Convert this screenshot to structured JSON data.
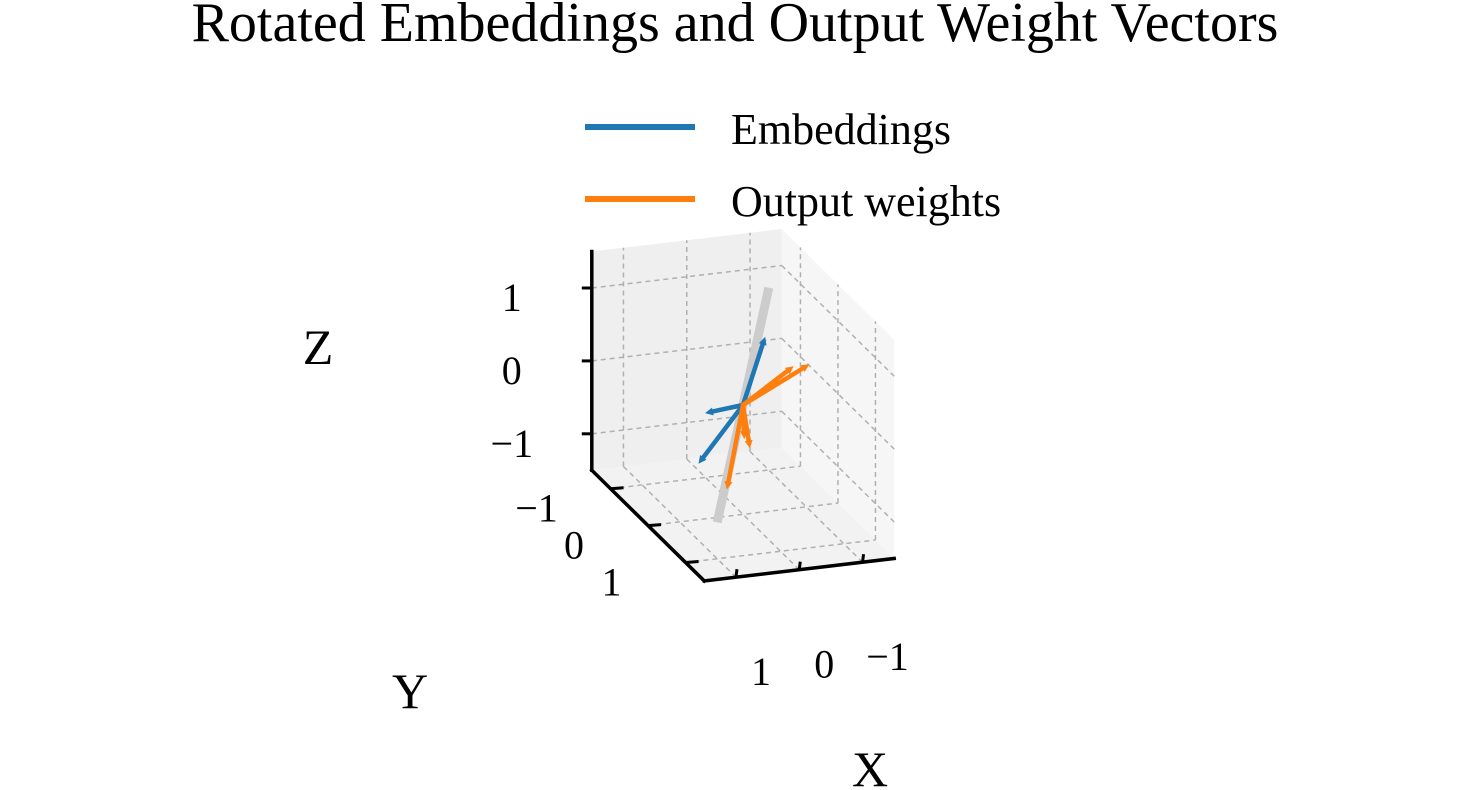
{
  "chart_data": {
    "type": "3d-vector",
    "title": "Rotated Embeddings and Output Weight Vectors",
    "xlabel": "X",
    "ylabel": "Y",
    "zlabel": "Z",
    "xticks": [
      "−1",
      "0",
      "1"
    ],
    "yticks": [
      "−1",
      "0",
      "1"
    ],
    "zticks": [
      "−1",
      "0",
      "1"
    ],
    "xlim": [
      -1.5,
      1.5
    ],
    "ylim": [
      -1.5,
      1.5
    ],
    "zlim": [
      -1.5,
      1.5
    ],
    "grid": true,
    "legend_position": "top-center",
    "series": [
      {
        "name": "Embeddings",
        "color": "#1f77b4",
        "vectors": [
          [
            -0.35,
            0.0,
            0.9
          ],
          [
            0.6,
            0.0,
            -0.05
          ],
          [
            1.0,
            0.5,
            -0.45
          ]
        ]
      },
      {
        "name": "Output weights",
        "color": "#ff7f0e",
        "vectors": [
          [
            -0.8,
            0.0,
            0.45
          ],
          [
            -1.05,
            0.0,
            0.45
          ],
          [
            0.55,
            0.5,
            -0.85
          ],
          [
            -0.05,
            0.1,
            -0.55
          ],
          [
            -0.02,
            0.0,
            -0.47
          ]
        ]
      }
    ],
    "reference_line": {
      "color": "#cccccc",
      "from": [
        1.0,
        1.0,
        -1.0
      ],
      "to": [
        -1.0,
        -1.0,
        1.0
      ]
    }
  }
}
